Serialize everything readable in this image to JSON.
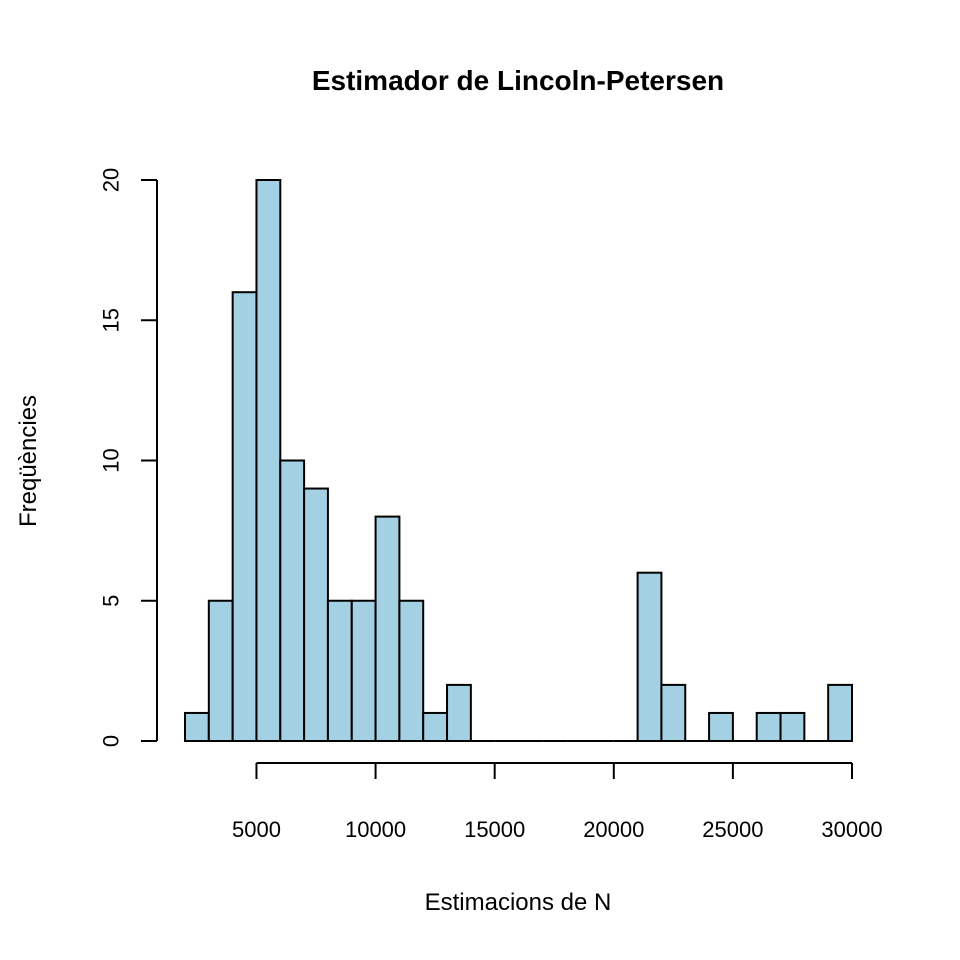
{
  "chart_data": {
    "type": "bar",
    "title": "Estimador de Lincoln-Petersen",
    "xlabel": "Estimacions de N",
    "ylabel": "Freqüències",
    "bin_width": 1000,
    "bin_starts": [
      2000,
      3000,
      4000,
      5000,
      6000,
      7000,
      8000,
      9000,
      10000,
      11000,
      12000,
      13000,
      14000,
      15000,
      16000,
      17000,
      18000,
      19000,
      20000,
      21000,
      22000,
      23000,
      24000,
      25000,
      26000,
      27000,
      28000,
      29000
    ],
    "values": [
      1,
      5,
      16,
      20,
      10,
      9,
      5,
      5,
      8,
      5,
      1,
      2,
      0,
      0,
      0,
      0,
      0,
      0,
      0,
      6,
      2,
      0,
      1,
      0,
      1,
      1,
      0,
      2
    ],
    "xlim": [
      2000,
      30000
    ],
    "ylim": [
      0,
      20
    ],
    "x_ticks": [
      5000,
      10000,
      15000,
      20000,
      25000,
      30000
    ],
    "y_ticks": [
      0,
      5,
      10,
      15,
      20
    ],
    "x_tick_labels": [
      "5000",
      "10000",
      "15000",
      "20000",
      "25000",
      "30000"
    ],
    "y_tick_labels": [
      "0",
      "5",
      "10",
      "15",
      "20"
    ],
    "grid": false,
    "legend": "none",
    "bar_color": "#a3d0e2",
    "edge_color": "#000000"
  }
}
